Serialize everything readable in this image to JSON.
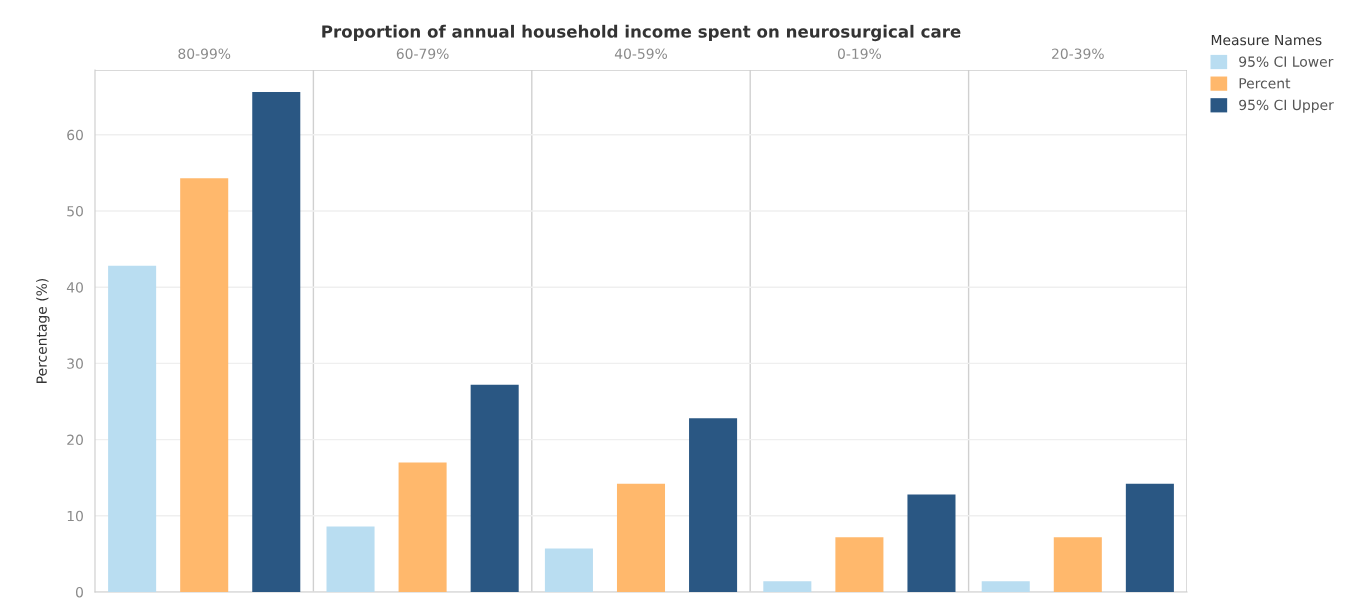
{
  "chart_data": {
    "type": "bar",
    "title": "Proportion of annual household income spent on neurosurgical care",
    "ylabel": "Percentage (%)",
    "legend_title": "Measure Names",
    "categories": [
      "80-99%",
      "60-79%",
      "40-59%",
      "0-19%",
      "20-39%"
    ],
    "series": [
      {
        "name": "95% CI Lower",
        "color": "#b9ddf1",
        "values": [
          42.8,
          8.6,
          5.7,
          1.4,
          1.4
        ]
      },
      {
        "name": "Percent",
        "color": "#ffb86c",
        "values": [
          54.3,
          17.0,
          14.2,
          7.2,
          7.2
        ]
      },
      {
        "name": "95% CI Upper",
        "color": "#2a5783",
        "values": [
          65.6,
          27.2,
          22.8,
          12.8,
          14.2
        ]
      }
    ],
    "ylim": [
      0,
      68.5
    ],
    "yticks": [
      0,
      10,
      20,
      30,
      40,
      50,
      60
    ],
    "grid": "y",
    "legend": "top right"
  }
}
